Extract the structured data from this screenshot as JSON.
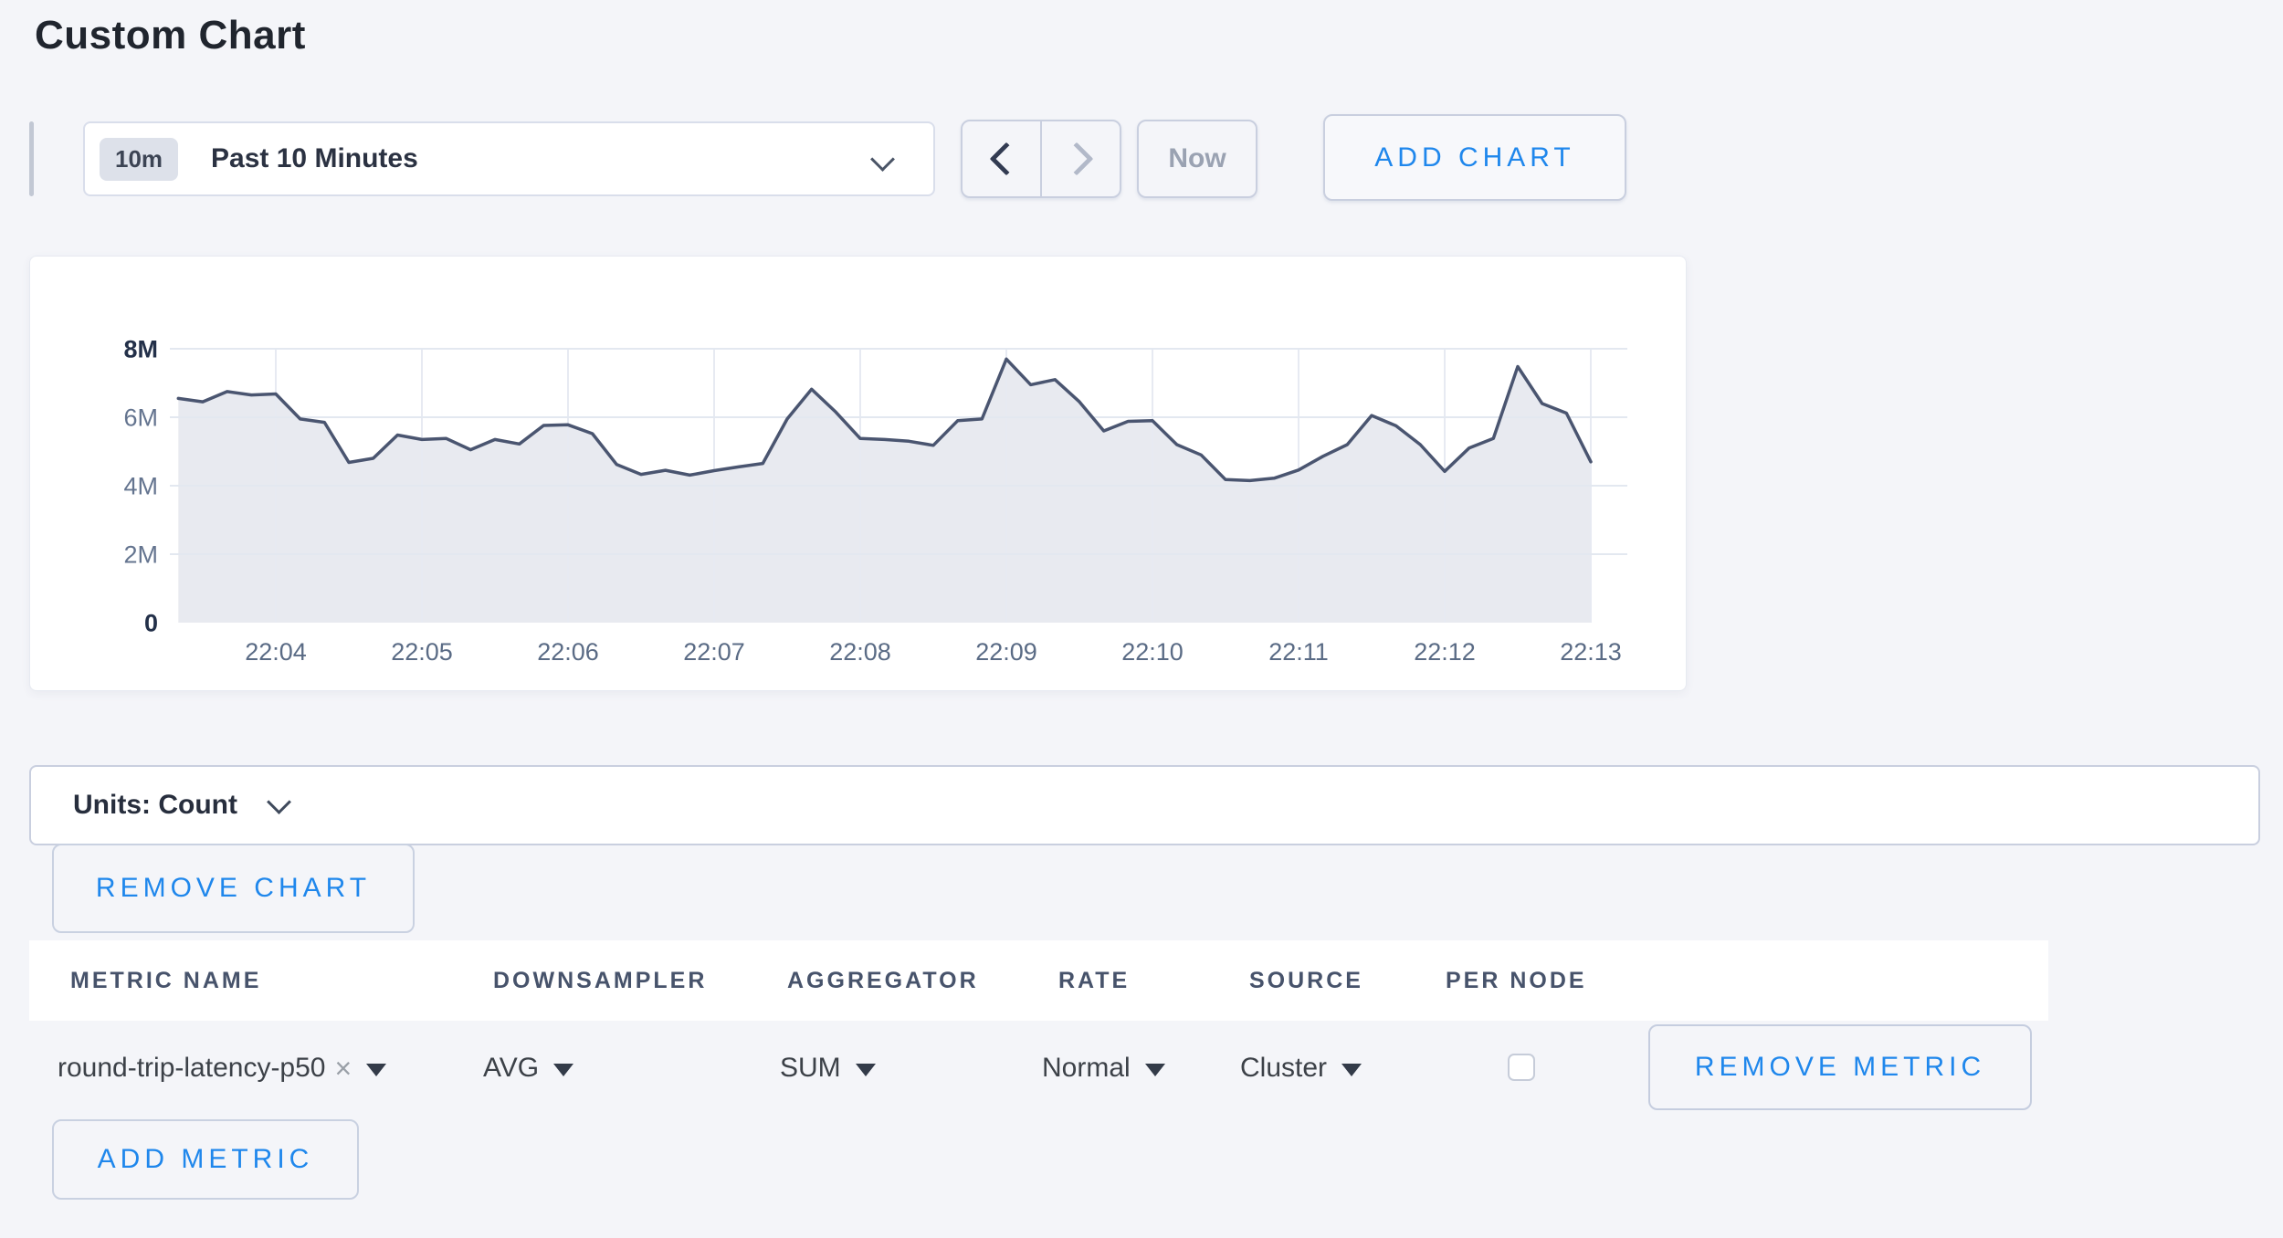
{
  "page": {
    "title": "Custom Chart"
  },
  "colors": {
    "page_bg": "#f4f5f9",
    "accent_blue": "#1f87ec",
    "chart_line": "#4a5570",
    "chart_fill": "#e8eaf0",
    "border_mid": "#c9cfdf"
  },
  "toolbar": {
    "range_badge": "10m",
    "range_label": "Past 10 Minutes",
    "now_label": "Now",
    "add_chart_label": "ADD CHART"
  },
  "chart_data": {
    "type": "area",
    "title": "",
    "xlabel": "",
    "ylabel": "",
    "x_ticks": [
      "22:04",
      "22:05",
      "22:06",
      "22:07",
      "22:08",
      "22:09",
      "22:10",
      "22:11",
      "22:12",
      "22:13"
    ],
    "y_ticks": [
      "0",
      "2M",
      "4M",
      "6M",
      "8M"
    ],
    "ylim_millions": [
      0,
      8
    ],
    "y_unit": "count",
    "grid": true,
    "legend": "none",
    "first_tick_index": 4,
    "points_per_tick": 6,
    "line_color": "#4a5570",
    "fill_color": "#e8eaf0",
    "series": [
      {
        "name": "round-trip-latency-p50",
        "values_millions": [
          6.55,
          6.45,
          6.75,
          6.65,
          6.68,
          5.95,
          5.85,
          4.68,
          4.8,
          5.48,
          5.35,
          5.38,
          5.05,
          5.35,
          5.22,
          5.76,
          5.78,
          5.52,
          4.62,
          4.33,
          4.45,
          4.31,
          4.44,
          4.55,
          4.65,
          5.95,
          6.82,
          6.15,
          5.38,
          5.35,
          5.3,
          5.18,
          5.9,
          5.95,
          7.7,
          6.95,
          7.1,
          6.45,
          5.6,
          5.88,
          5.9,
          5.2,
          4.9,
          4.18,
          4.15,
          4.22,
          4.46,
          4.86,
          5.2,
          6.05,
          5.75,
          5.2,
          4.42,
          5.1,
          5.38,
          7.48,
          6.4,
          6.12,
          4.7
        ]
      }
    ]
  },
  "units_bar": {
    "label": "Units: Count"
  },
  "remove_chart_label": "REMOVE CHART",
  "table": {
    "headers": [
      "METRIC NAME",
      "DOWNSAMPLER",
      "AGGREGATOR",
      "RATE",
      "SOURCE",
      "PER NODE"
    ],
    "rows": [
      {
        "metric_name": "round-trip-latency-p50",
        "remove_icon": "×",
        "downsampler": "AVG",
        "aggregator": "SUM",
        "rate": "Normal",
        "source": "Cluster",
        "per_node_checked": false,
        "remove_label": "REMOVE METRIC"
      }
    ],
    "add_metric_label": "ADD METRIC"
  }
}
